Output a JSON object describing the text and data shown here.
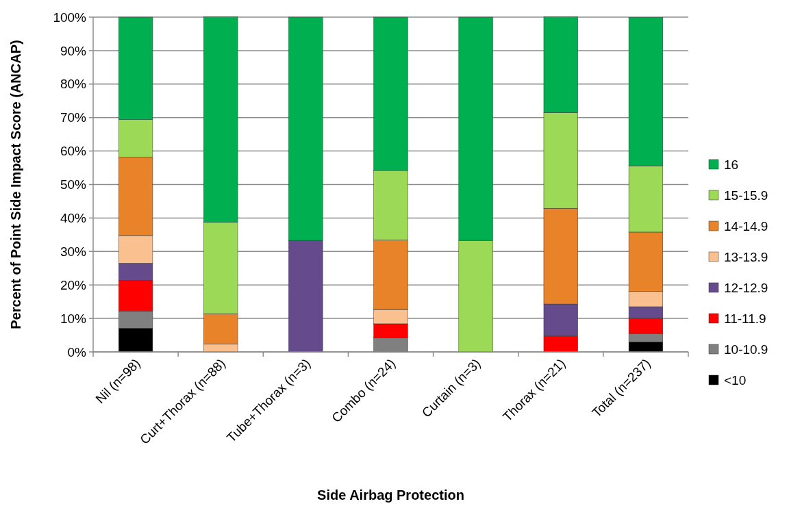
{
  "chart_data": {
    "type": "bar",
    "stacked": true,
    "xlabel": "Side Airbag Protection",
    "ylabel": "Percent of Point Side Impact Score (ANCAP)",
    "categories": [
      "Nil (n=98)",
      "Curt+Thorax (n=88)",
      "Tube+Thorax (n=3)",
      "Combo (n=24)",
      "Curtain (n=3)",
      "Thorax (n=21)",
      "Total (n=237)"
    ],
    "series": [
      {
        "name": "<10",
        "color": "#000000",
        "values": [
          7.1,
          0,
          0,
          0,
          0,
          0,
          3.0
        ]
      },
      {
        "name": "10-10.9",
        "color": "#808080",
        "values": [
          5.1,
          0,
          0,
          4.2,
          0,
          0,
          2.5
        ]
      },
      {
        "name": "11-11.9",
        "color": "#ff0000",
        "values": [
          9.2,
          0,
          0,
          4.2,
          0,
          4.8,
          4.6
        ]
      },
      {
        "name": "12-12.9",
        "color": "#654b8c",
        "values": [
          5.1,
          0,
          33.3,
          0,
          0,
          9.5,
          3.4
        ]
      },
      {
        "name": "13-13.9",
        "color": "#fac090",
        "values": [
          8.2,
          2.3,
          0,
          4.2,
          0,
          0,
          4.6
        ]
      },
      {
        "name": "14-14.9",
        "color": "#e8832a",
        "values": [
          23.5,
          9.1,
          0,
          20.8,
          0,
          28.6,
          17.7
        ]
      },
      {
        "name": "15-15.9",
        "color": "#9bd956",
        "values": [
          11.2,
          27.3,
          0,
          20.8,
          33.3,
          28.6,
          19.8
        ]
      },
      {
        "name": "16",
        "color": "#00b050",
        "values": [
          30.6,
          61.4,
          66.7,
          45.8,
          66.7,
          28.6,
          44.3
        ]
      }
    ],
    "ylim": [
      0,
      100
    ],
    "yticks": [
      {
        "value": 0,
        "label": "0%"
      },
      {
        "value": 10,
        "label": "10%"
      },
      {
        "value": 20,
        "label": "20%"
      },
      {
        "value": 30,
        "label": "30%"
      },
      {
        "value": 40,
        "label": "40%"
      },
      {
        "value": 50,
        "label": "50%"
      },
      {
        "value": 60,
        "label": "60%"
      },
      {
        "value": 70,
        "label": "70%"
      },
      {
        "value": 80,
        "label": "80%"
      },
      {
        "value": 90,
        "label": "90%"
      },
      {
        "value": 100,
        "label": "100%"
      }
    ],
    "grid": "y",
    "legend": "right"
  }
}
